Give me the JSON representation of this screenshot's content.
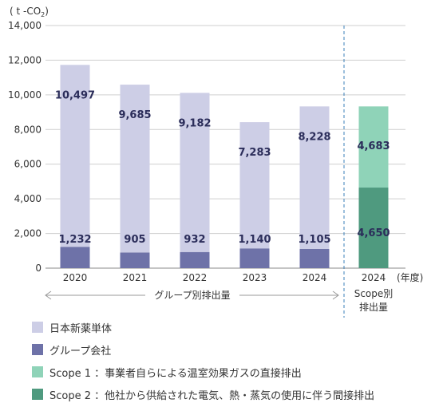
{
  "chart_data": {
    "type": "bar",
    "unit_label": "( t -CO",
    "unit_sub": "2",
    "unit_close": ")",
    "ylim": [
      0,
      14000
    ],
    "yticks": [
      0,
      2000,
      4000,
      6000,
      8000,
      10000,
      12000,
      14000
    ],
    "ytick_labels": [
      "0",
      "2,000",
      "4,000",
      "6,000",
      "8,000",
      "10,000",
      "12,000",
      "14,000"
    ],
    "grid": true,
    "categories": [
      "2020",
      "2021",
      "2022",
      "2023",
      "2024"
    ],
    "series": [
      {
        "name": "グループ会社",
        "color": "#6e72a8",
        "values": [
          1232,
          905,
          932,
          1140,
          1105
        ],
        "labels": [
          "1,232",
          "905",
          "932",
          "1,140",
          "1,105"
        ]
      },
      {
        "name": "日本新薬単体",
        "color": "#cdcee6",
        "values": [
          10497,
          9685,
          9182,
          7283,
          8228
        ],
        "labels": [
          "10,497",
          "9,685",
          "9,182",
          "7,283",
          "8,228"
        ]
      }
    ],
    "scope_bar": {
      "category": "2024",
      "segments": [
        {
          "name": "Scope 2",
          "color": "#4f9a7f",
          "value": 4650,
          "label": "4,650"
        },
        {
          "name": "Scope 1",
          "color": "#8fd3b8",
          "value": 4683,
          "label": "4,683"
        }
      ]
    },
    "x_unit": "(年度)",
    "group_label": "グループ別排出量",
    "scope_group_label": [
      "Scope別",
      "排出量"
    ],
    "legend": [
      {
        "label": "日本新薬単体",
        "color": "#cdcee6"
      },
      {
        "label": "グループ会社",
        "color": "#6e72a8"
      },
      {
        "label": "Scope 1 ：事業者自らによる温室効果ガスの直接排出",
        "color": "#8fd3b8"
      },
      {
        "label": "Scope 2 ：他社から供給された電気、熱・蒸気の使用に伴う間接排出",
        "color": "#4f9a7f"
      }
    ]
  }
}
